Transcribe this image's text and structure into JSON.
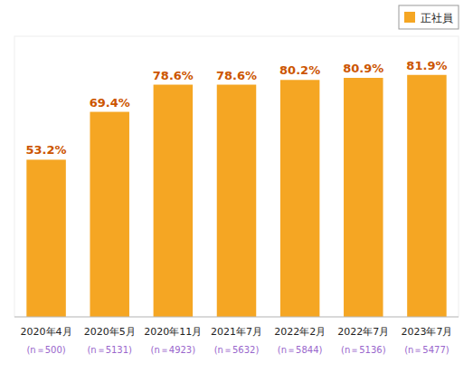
{
  "chart_data": {
    "type": "bar",
    "categories": [
      "2020年4月",
      "2020年5月",
      "2020年11月",
      "2021年7月",
      "2022年2月",
      "2022年7月",
      "2023年7月"
    ],
    "subcategories": [
      "(n＝500)",
      "(n＝5131)",
      "(n＝4923)",
      "(n＝5632)",
      "(n＝5844)",
      "(n＝5136)",
      "(n＝5477)"
    ],
    "series": [
      {
        "name": "正社員",
        "color": "#F5A623",
        "values": [
          53.2,
          69.4,
          78.6,
          78.6,
          80.2,
          80.9,
          81.9
        ],
        "value_labels": [
          "53.2%",
          "69.4%",
          "78.6%",
          "78.6%",
          "80.2%",
          "80.9%",
          "81.9%"
        ]
      }
    ],
    "ylim": [
      0,
      95
    ],
    "legend": "upper right",
    "data_labels": true,
    "tick_labels": "x"
  }
}
